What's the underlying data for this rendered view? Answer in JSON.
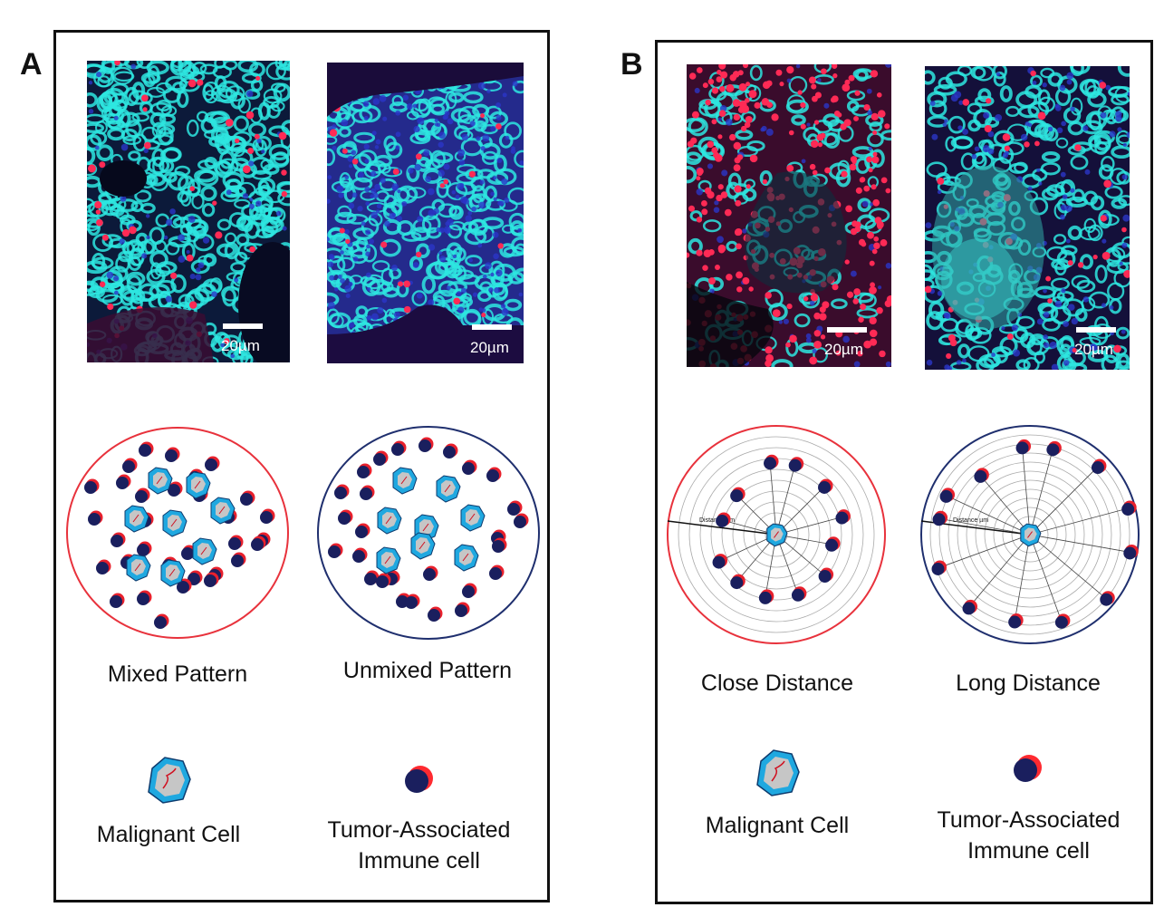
{
  "panels": {
    "a": {
      "letter": "A",
      "images": [
        {
          "scale_label": "20µm"
        },
        {
          "scale_label": "20µm"
        }
      ],
      "captions": [
        "Mixed Pattern",
        "Unmixed Pattern"
      ],
      "legend": {
        "malignant": "Malignant Cell",
        "immune_line1": "Tumor-Associated",
        "immune_line2": "Immune cell"
      }
    },
    "b": {
      "letter": "B",
      "images": [
        {
          "scale_label": "20µm"
        },
        {
          "scale_label": "20µm"
        }
      ],
      "captions": [
        "Close Distance",
        "Long Distance"
      ],
      "distance_labels": [
        "Distance µm",
        "Distance µm"
      ],
      "legend": {
        "malignant": "Malignant Cell",
        "immune_line1": "Tumor-Associated",
        "immune_line2": "Immune cell"
      }
    }
  },
  "colors": {
    "cyan": "#2ee6e0",
    "nucleus_blue": "#1a2a9a",
    "immune_red": "#ff2a55",
    "mixed_circle": "#e8323c",
    "unmixed_circle": "#1f2f6e",
    "malignant_fill": "#1fa8e0",
    "immune_fill": "#1a2a6e"
  },
  "icons": [
    "malignant-cell-icon",
    "immune-cell-icon"
  ]
}
